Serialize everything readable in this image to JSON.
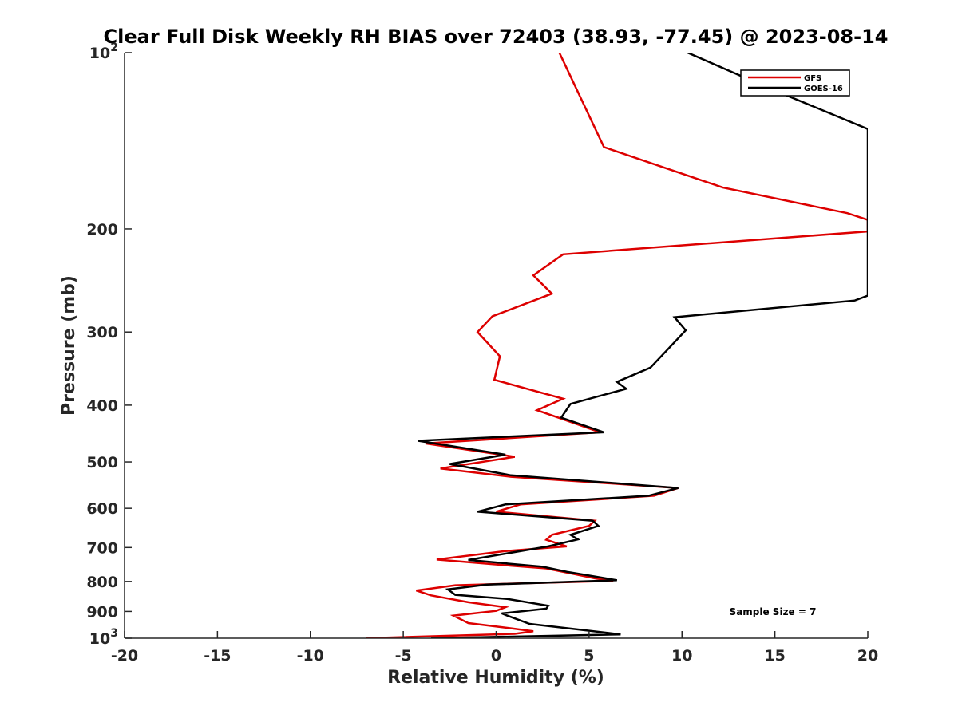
{
  "chart_data": {
    "type": "line",
    "title": "Clear Full Disk Weekly RH BIAS over 72403 (38.93, -77.45) @ 2023-08-14",
    "xlabel": "Relative Humidity (%)",
    "ylabel": "Pressure (mb)",
    "xlim": [
      -20,
      20
    ],
    "ylim": [
      100,
      1000
    ],
    "y_scale": "log",
    "y_reversed": true,
    "x_ticks": [
      "-20",
      "-15",
      "-10",
      "-5",
      "0",
      "5",
      "10",
      "15",
      "20"
    ],
    "y_ticks": [
      {
        "value": 100,
        "base": "10",
        "exp": "2"
      },
      {
        "value": 200,
        "base": "200",
        "exp": ""
      },
      {
        "value": 300,
        "base": "300",
        "exp": ""
      },
      {
        "value": 400,
        "base": "400",
        "exp": ""
      },
      {
        "value": 500,
        "base": "500",
        "exp": ""
      },
      {
        "value": 600,
        "base": "600",
        "exp": ""
      },
      {
        "value": 700,
        "base": "700",
        "exp": ""
      },
      {
        "value": 800,
        "base": "800",
        "exp": ""
      },
      {
        "value": 900,
        "base": "900",
        "exp": ""
      },
      {
        "value": 1000,
        "base": "10",
        "exp": "3"
      }
    ],
    "grid": false,
    "legend_position": "top-right",
    "series": [
      {
        "name": "GFS",
        "color": "#dd0000",
        "points": [
          [
            3.4,
            100
          ],
          [
            5.8,
            145
          ],
          [
            12.2,
            170
          ],
          [
            18.9,
            188
          ],
          [
            20.0,
            193
          ],
          [
            20.0,
            202
          ],
          [
            3.6,
            221
          ],
          [
            2.0,
            240
          ],
          [
            3.0,
            258
          ],
          [
            -0.2,
            282
          ],
          [
            -1.0,
            300
          ],
          [
            0.2,
            330
          ],
          [
            -0.1,
            362
          ],
          [
            3.6,
            390
          ],
          [
            2.2,
            408
          ],
          [
            3.8,
            425
          ],
          [
            5.6,
            445
          ],
          [
            -3.8,
            465
          ],
          [
            1.0,
            490
          ],
          [
            -3.0,
            513
          ],
          [
            0.8,
            530
          ],
          [
            9.8,
            554
          ],
          [
            8.5,
            571
          ],
          [
            1.3,
            591
          ],
          [
            0.0,
            608
          ],
          [
            5.3,
            630
          ],
          [
            5.0,
            643
          ],
          [
            3.0,
            666
          ],
          [
            2.7,
            679
          ],
          [
            3.8,
            697
          ],
          [
            0.5,
            710
          ],
          [
            -3.2,
            734
          ],
          [
            0.8,
            752
          ],
          [
            2.7,
            760
          ],
          [
            4.0,
            775
          ],
          [
            5.3,
            790
          ],
          [
            6.3,
            798
          ],
          [
            -2.2,
            812
          ],
          [
            -4.3,
            829
          ],
          [
            -3.5,
            845
          ],
          [
            -1.5,
            868
          ],
          [
            0.5,
            885
          ],
          [
            0.0,
            898
          ],
          [
            -2.3,
            915
          ],
          [
            -1.5,
            942
          ],
          [
            0.6,
            960
          ],
          [
            2.0,
            973
          ],
          [
            1.0,
            983
          ],
          [
            -7.0,
            1000
          ]
        ]
      },
      {
        "name": "GOES-16",
        "color": "#000000",
        "points": [
          [
            10.3,
            100
          ],
          [
            14.7,
            115
          ],
          [
            20.0,
            135
          ],
          [
            20.0,
            260
          ],
          [
            19.3,
            265
          ],
          [
            9.6,
            283
          ],
          [
            10.2,
            298
          ],
          [
            9.2,
            322
          ],
          [
            8.3,
            345
          ],
          [
            6.5,
            365
          ],
          [
            7.0,
            375
          ],
          [
            4.0,
            398
          ],
          [
            3.5,
            420
          ],
          [
            5.8,
            445
          ],
          [
            -4.2,
            460
          ],
          [
            0.5,
            486
          ],
          [
            -2.5,
            504
          ],
          [
            0.8,
            527
          ],
          [
            9.8,
            554
          ],
          [
            8.2,
            571
          ],
          [
            0.5,
            591
          ],
          [
            -1.0,
            608
          ],
          [
            5.2,
            630
          ],
          [
            5.5,
            643
          ],
          [
            4.0,
            666
          ],
          [
            4.4,
            678
          ],
          [
            2.8,
            697
          ],
          [
            -1.5,
            735
          ],
          [
            2.5,
            755
          ],
          [
            3.8,
            770
          ],
          [
            6.5,
            796
          ],
          [
            -0.5,
            810
          ],
          [
            -2.6,
            825
          ],
          [
            -2.2,
            843
          ],
          [
            0.6,
            857
          ],
          [
            2.8,
            880
          ],
          [
            2.7,
            890
          ],
          [
            0.3,
            907
          ],
          [
            0.6,
            915
          ],
          [
            1.8,
            945
          ],
          [
            6.7,
            985
          ],
          [
            -3.5,
            1000
          ]
        ]
      }
    ],
    "annotation": "Sample Size = 7"
  }
}
